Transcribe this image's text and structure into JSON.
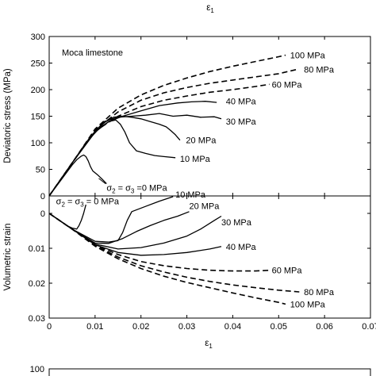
{
  "header": {
    "top_label": "ε",
    "top_label_sub": "1"
  },
  "chart_data": [
    {
      "type": "line",
      "panel": "deviatoric-stress",
      "title": "",
      "annotation_title": "Moca limestone",
      "xlabel": "",
      "ylabel": "Deviatoric stress (MPa)",
      "xlim": [
        0,
        0.07
      ],
      "ylim": [
        0,
        300
      ],
      "y_ticks": [
        "0",
        "50",
        "100",
        "150",
        "200",
        "250",
        "300"
      ],
      "series": [
        {
          "label": "σ2 = σ3 =0 MPa",
          "label_parts": [
            "σ",
            "2",
            " = σ",
            "3",
            " =0 MPa"
          ],
          "style": "solid",
          "x": [
            0,
            0.003,
            0.005,
            0.006,
            0.007,
            0.0075,
            0.008,
            0.0085,
            0.009,
            0.0095,
            0.0105,
            0.0115,
            0.0125
          ],
          "y": [
            0,
            35,
            58,
            68,
            75,
            77,
            74,
            66,
            55,
            47,
            40,
            32,
            23
          ],
          "label_pos": [
            0.0125,
            16
          ],
          "connector": [
            [
              0.0108,
              33
            ],
            [
              0.0123,
              23
            ]
          ]
        },
        {
          "label": "10 MPa",
          "style": "solid",
          "x": [
            0,
            0.005,
            0.008,
            0.011,
            0.013,
            0.0145,
            0.0155,
            0.0165,
            0.0175,
            0.019,
            0.021,
            0.023,
            0.025,
            0.0275
          ],
          "y": [
            0,
            62,
            100,
            128,
            140,
            143,
            135,
            120,
            100,
            85,
            80,
            76,
            74,
            72
          ],
          "label_pos": [
            0.0285,
            70
          ]
        },
        {
          "label": "20 MPa",
          "style": "solid",
          "x": [
            0,
            0.005,
            0.009,
            0.012,
            0.014,
            0.016,
            0.018,
            0.02,
            0.022,
            0.024,
            0.0255,
            0.0265,
            0.0275,
            0.0285
          ],
          "y": [
            0,
            62,
            110,
            138,
            148,
            150,
            148,
            145,
            140,
            135,
            130,
            123,
            115,
            105
          ],
          "label_pos": [
            0.0298,
            105
          ]
        },
        {
          "label": "30 MPa",
          "style": "solid",
          "x": [
            0,
            0.005,
            0.009,
            0.012,
            0.015,
            0.018,
            0.021,
            0.024,
            0.027,
            0.03,
            0.033,
            0.036,
            0.0375
          ],
          "y": [
            0,
            62,
            112,
            140,
            148,
            150,
            152,
            155,
            150,
            152,
            148,
            149,
            145
          ],
          "label_pos": [
            0.0385,
            140
          ]
        },
        {
          "label": "40 MPa",
          "style": "solid",
          "x": [
            0,
            0.005,
            0.01,
            0.013,
            0.016,
            0.02,
            0.024,
            0.028,
            0.031,
            0.034,
            0.0365
          ],
          "y": [
            0,
            62,
            120,
            140,
            150,
            160,
            170,
            175,
            177,
            178,
            176
          ],
          "label_pos": [
            0.0385,
            178
          ]
        },
        {
          "label": "60 MPa",
          "style": "dashed",
          "x": [
            0,
            0.005,
            0.01,
            0.015,
            0.02,
            0.025,
            0.03,
            0.035,
            0.04,
            0.045,
            0.048
          ],
          "y": [
            0,
            62,
            122,
            150,
            168,
            180,
            188,
            195,
            200,
            206,
            210
          ],
          "label_pos": [
            0.0485,
            210
          ]
        },
        {
          "label": "80 MPa",
          "style": "dashed",
          "x": [
            0,
            0.005,
            0.01,
            0.015,
            0.02,
            0.025,
            0.03,
            0.035,
            0.04,
            0.045,
            0.05,
            0.054
          ],
          "y": [
            0,
            62,
            124,
            158,
            180,
            194,
            204,
            212,
            218,
            224,
            230,
            238
          ],
          "label_pos": [
            0.0555,
            238
          ]
        },
        {
          "label": "100 MPa",
          "style": "dashed",
          "x": [
            0,
            0.005,
            0.01,
            0.015,
            0.02,
            0.025,
            0.03,
            0.035,
            0.04,
            0.045,
            0.05,
            0.0515
          ],
          "y": [
            0,
            62,
            126,
            165,
            190,
            208,
            222,
            234,
            244,
            253,
            262,
            265
          ],
          "label_pos": [
            0.0525,
            265
          ]
        }
      ]
    },
    {
      "type": "line",
      "panel": "volumetric-strain",
      "title": "",
      "xlabel": "ε",
      "xlabel_sub": "1",
      "ylabel": "Volumetric strain",
      "xlim": [
        0,
        0.07
      ],
      "ylim": [
        -0.005,
        0.03
      ],
      "y_inverted": true,
      "x_ticks": [
        "0",
        "0.01",
        "0.02",
        "0.03",
        "0.04",
        "0.05",
        "0.06",
        "0.07"
      ],
      "y_ticks": [
        "0",
        "0.01",
        "0.02",
        "0.03"
      ],
      "y_tick_values": [
        0,
        0.01,
        0.02,
        0.03
      ],
      "series": [
        {
          "label": "σ2 = σ3 = 0 MPa",
          "label_parts": [
            "σ",
            "2",
            " = σ",
            "3",
            " = 0 MPa"
          ],
          "style": "solid",
          "x": [
            0,
            0.002,
            0.004,
            0.005,
            0.006,
            0.0065,
            0.007,
            0.0075,
            0.008
          ],
          "y": [
            0,
            0.0018,
            0.0036,
            0.0042,
            0.0045,
            0.0035,
            0.002,
            0.0,
            -0.0025
          ],
          "label_pos": [
            0.0015,
            -0.0035
          ]
        },
        {
          "label": "10 MPa",
          "style": "solid",
          "x": [
            0,
            0.005,
            0.01,
            0.013,
            0.015,
            0.016,
            0.017,
            0.018,
            0.021,
            0.024,
            0.027
          ],
          "y": [
            0,
            0.0045,
            0.008,
            0.0082,
            0.0078,
            0.0055,
            0.002,
            -0.0005,
            -0.002,
            -0.0035,
            -0.0048
          ],
          "label_pos": [
            0.0275,
            -0.0055
          ]
        },
        {
          "label": "20 MPa",
          "style": "solid",
          "x": [
            0,
            0.005,
            0.01,
            0.013,
            0.016,
            0.019,
            0.022,
            0.025,
            0.028,
            0.0305
          ],
          "y": [
            0,
            0.0045,
            0.0085,
            0.0086,
            0.0072,
            0.0052,
            0.0035,
            0.002,
            0.0008,
            -0.0005
          ],
          "label_pos": [
            0.0305,
            -0.0022
          ]
        },
        {
          "label": "30 MPa",
          "style": "solid",
          "x": [
            0,
            0.005,
            0.01,
            0.015,
            0.02,
            0.025,
            0.03,
            0.033,
            0.036,
            0.0375
          ],
          "y": [
            0,
            0.0045,
            0.0088,
            0.0102,
            0.0098,
            0.0085,
            0.0065,
            0.0045,
            0.002,
            0.0008
          ],
          "label_pos": [
            0.0375,
            0.0025
          ]
        },
        {
          "label": "40 MPa",
          "style": "solid",
          "x": [
            0,
            0.005,
            0.01,
            0.015,
            0.02,
            0.025,
            0.03,
            0.035,
            0.0375
          ],
          "y": [
            0,
            0.0045,
            0.009,
            0.0112,
            0.012,
            0.0118,
            0.0112,
            0.0102,
            0.0095
          ],
          "label_pos": [
            0.0385,
            0.0095
          ]
        },
        {
          "label": "60 MPa",
          "style": "dashed",
          "x": [
            0,
            0.005,
            0.01,
            0.015,
            0.02,
            0.025,
            0.03,
            0.035,
            0.04,
            0.045,
            0.048
          ],
          "y": [
            0,
            0.0045,
            0.009,
            0.0118,
            0.0138,
            0.015,
            0.0158,
            0.0163,
            0.0165,
            0.0165,
            0.0163
          ],
          "label_pos": [
            0.0485,
            0.0163
          ]
        },
        {
          "label": "80 MPa",
          "style": "dashed",
          "x": [
            0,
            0.005,
            0.01,
            0.015,
            0.02,
            0.025,
            0.03,
            0.035,
            0.04,
            0.045,
            0.05,
            0.0545
          ],
          "y": [
            0,
            0.0045,
            0.0092,
            0.0125,
            0.015,
            0.0168,
            0.0183,
            0.0195,
            0.0205,
            0.0213,
            0.022,
            0.0225
          ],
          "label_pos": [
            0.0555,
            0.0225
          ]
        },
        {
          "label": "100 MPa",
          "style": "dashed",
          "x": [
            0,
            0.005,
            0.01,
            0.015,
            0.02,
            0.025,
            0.03,
            0.035,
            0.04,
            0.045,
            0.05,
            0.0515
          ],
          "y": [
            0,
            0.0045,
            0.0094,
            0.013,
            0.0158,
            0.018,
            0.0198,
            0.0213,
            0.0228,
            0.0242,
            0.0255,
            0.026
          ],
          "label_pos": [
            0.0525,
            0.026
          ]
        }
      ]
    },
    {
      "type": "line",
      "panel": "third-panel-partial",
      "title": "",
      "xlabel": "",
      "ylabel": "",
      "y_ticks": [
        "100"
      ],
      "series": []
    }
  ]
}
